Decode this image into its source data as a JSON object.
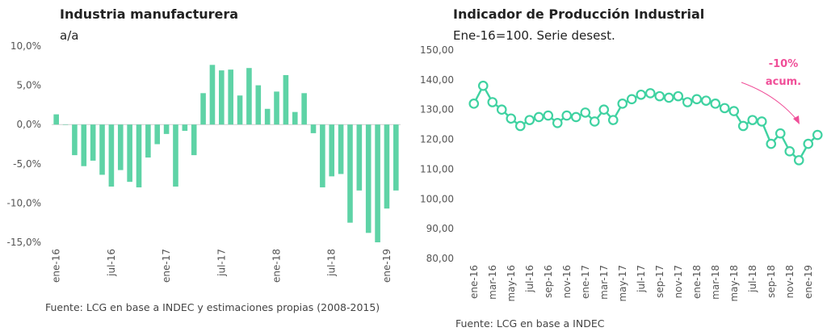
{
  "left": {
    "title": "Industria manufacturera",
    "subtitle": "a/a",
    "source": "Fuente: LCG en base a INDEC y estimaciones propias (2008-2015)"
  },
  "right": {
    "title": "Indicador de Producción Industrial",
    "subtitle": "Ene-16=100. Serie desest.",
    "source": "Fuente: LCG en base a INDEC",
    "annotation": {
      "line1": "-10%",
      "line2": "acum."
    }
  },
  "colors": {
    "bar": "#5ed3a6",
    "line": "#3fd2a1",
    "annotation": "#f04e98",
    "axis_text": "#555555"
  },
  "chart_data": [
    {
      "type": "bar",
      "title": "Industria manufacturera",
      "subtitle": "a/a",
      "categories": [
        "ene-16",
        "feb-16",
        "mar-16",
        "abr-16",
        "may-16",
        "jun-16",
        "jul-16",
        "ago-16",
        "sep-16",
        "oct-16",
        "nov-16",
        "dic-16",
        "ene-17",
        "feb-17",
        "mar-17",
        "abr-17",
        "may-17",
        "jun-17",
        "jul-17",
        "ago-17",
        "sep-17",
        "oct-17",
        "nov-17",
        "dic-17",
        "ene-18",
        "feb-18",
        "mar-18",
        "abr-18",
        "may-18",
        "jun-18",
        "jul-18",
        "ago-18",
        "sep-18",
        "oct-18",
        "nov-18",
        "dic-18",
        "ene-19",
        "feb-19"
      ],
      "values": [
        1.3,
        0.0,
        -3.9,
        -5.3,
        -4.6,
        -6.4,
        -7.9,
        -5.8,
        -7.3,
        -8.0,
        -4.2,
        -2.5,
        -1.2,
        -7.9,
        -0.8,
        -3.9,
        4.0,
        7.6,
        6.9,
        7.0,
        3.7,
        7.2,
        5.0,
        2.0,
        4.2,
        6.3,
        1.6,
        4.0,
        -1.1,
        -8.0,
        -6.6,
        -6.3,
        -12.5,
        -8.4,
        -13.8,
        -15.0,
        -10.7,
        -8.4
      ],
      "tick_labels": [
        "ene-16",
        "jul-16",
        "ene-17",
        "jul-17",
        "ene-18",
        "jul-18",
        "ene-19"
      ],
      "y_tick_labels": [
        "10,0%",
        "5,0%",
        "0,0%",
        "-5,0%",
        "-10,0%",
        "-15,0%"
      ],
      "ylim": [
        -15,
        10
      ],
      "grid": false
    },
    {
      "type": "line",
      "title": "Indicador de Producción Industrial",
      "subtitle": "Ene-16=100. Serie desest.",
      "x": [
        "ene-16",
        "feb-16",
        "mar-16",
        "abr-16",
        "may-16",
        "jun-16",
        "jul-16",
        "ago-16",
        "sep-16",
        "oct-16",
        "nov-16",
        "dic-16",
        "ene-17",
        "feb-17",
        "mar-17",
        "abr-17",
        "may-17",
        "jun-17",
        "jul-17",
        "ago-17",
        "sep-17",
        "oct-17",
        "nov-17",
        "dic-17",
        "ene-18",
        "feb-18",
        "mar-18",
        "abr-18",
        "may-18",
        "jun-18",
        "jul-18",
        "ago-18",
        "sep-18",
        "oct-18",
        "nov-18",
        "dic-18",
        "ene-19",
        "feb-19"
      ],
      "values": [
        132,
        138,
        132.5,
        130,
        127,
        124.5,
        126.5,
        127.5,
        128,
        125.5,
        128,
        127.5,
        129,
        126,
        130,
        126.5,
        132,
        133.5,
        135,
        135.5,
        134.5,
        134,
        134.5,
        132.5,
        133.5,
        133,
        132,
        130.5,
        129.5,
        124.5,
        126.5,
        126,
        118.5,
        122,
        116,
        113,
        118.5,
        121.5
      ],
      "tick_labels": [
        "ene-16",
        "mar-16",
        "may-16",
        "jul-16",
        "sep-16",
        "nov-16",
        "ene-17",
        "mar-17",
        "may-17",
        "jul-17",
        "sep-17",
        "nov-17",
        "ene-18",
        "mar-18",
        "may-18",
        "jul-18",
        "sep-18",
        "nov-18",
        "ene-19"
      ],
      "y_tick_labels": [
        "150,00",
        "140,00",
        "130,00",
        "120,00",
        "110,00",
        "100,00",
        "90,00",
        "80,00"
      ],
      "ylim": [
        80,
        150
      ],
      "grid": false,
      "annotations": [
        "-10% acum."
      ]
    }
  ]
}
